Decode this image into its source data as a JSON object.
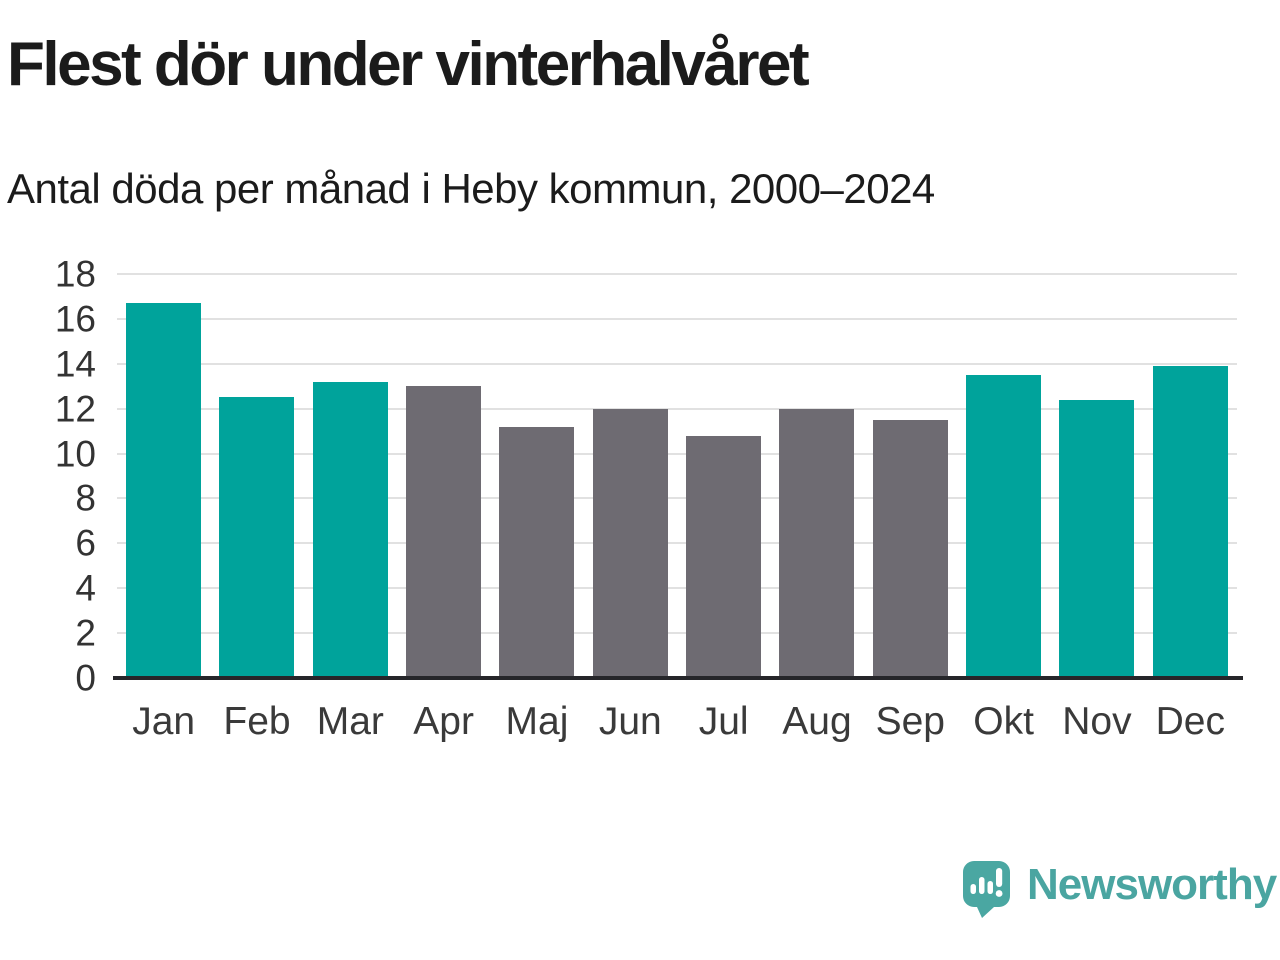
{
  "chart_data": {
    "type": "bar",
    "title": "Flest dör under vinterhalvåret",
    "subtitle": "Antal döda per månad i Heby kommun, 2000–2024",
    "categories": [
      "Jan",
      "Feb",
      "Mar",
      "Apr",
      "Maj",
      "Jun",
      "Jul",
      "Aug",
      "Sep",
      "Okt",
      "Nov",
      "Dec"
    ],
    "values": [
      16.7,
      12.5,
      13.2,
      13.0,
      11.2,
      12.0,
      10.8,
      12.0,
      11.5,
      13.5,
      12.4,
      13.9
    ],
    "highlighted": [
      true,
      true,
      true,
      false,
      false,
      false,
      false,
      false,
      false,
      true,
      true,
      true
    ],
    "highlight_color": "#00a39b",
    "base_color": "#6e6b72",
    "xlabel": "",
    "ylabel": "",
    "ylim": [
      0,
      18
    ],
    "y_ticks": [
      0,
      2,
      4,
      6,
      8,
      10,
      12,
      14,
      16,
      18
    ],
    "grid": "horizontal",
    "legend": "none"
  },
  "colors": {
    "background": "#ffffff",
    "title_text": "#1b1b1b",
    "tick_text": "#333333",
    "gridline": "#e1e1e1",
    "axis_line": "#26262a",
    "logo_teal": "#4aa5a1"
  },
  "branding": {
    "logo_text": "Newsworthy",
    "logo_icon": "speech-bubble-bar-chart-icon"
  }
}
